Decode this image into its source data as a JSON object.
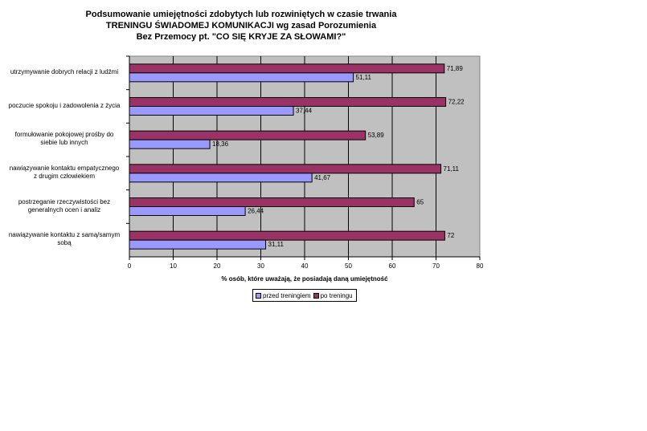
{
  "chart_data": {
    "type": "bar",
    "orientation": "horizontal",
    "title_lines": [
      "Podsumowanie umiejętności zdobytych lub rozwiniętych w czasie trwania",
      "TRENINGU ŚWIADOMEJ KOMUNIKACJI wg zasad Porozumienia",
      "Bez Przemocy pt. \"CO SIĘ KRYJE ZA SŁOWAMI?\""
    ],
    "categories": [
      [
        "utrzymywanie dobrych relacji z ludźmi"
      ],
      [
        "poczucie spokoju i zadowolenia z życia"
      ],
      [
        "formułowanie pokojowej prośby do",
        "siebie lub innych"
      ],
      [
        "nawiązywanie kontaktu empatycznego",
        "z drugim człowiekiem"
      ],
      [
        "postrzeganie rzeczywistości bez",
        "generalnych ocen i analiz"
      ],
      [
        "nawiązywanie kontaktu z samą/samym",
        "sobą"
      ]
    ],
    "series": [
      {
        "name": "po treningu",
        "color": "#993366",
        "values": [
          71.89,
          72.22,
          53.89,
          71.11,
          65,
          72
        ],
        "labels": [
          "71,89",
          "72,22",
          "53,89",
          "71,11",
          "65",
          "72"
        ]
      },
      {
        "name": "przed treningiem",
        "color": "#9999ff",
        "values": [
          51.11,
          37.44,
          18.36,
          41.67,
          26.44,
          31.11
        ],
        "labels": [
          "51,11",
          "37,44",
          "18,36",
          "41,67",
          "26,44",
          "31,11"
        ]
      }
    ],
    "xlabel": "% osób, które uważają, że posiadają daną umiejętność",
    "xlim": [
      0,
      80
    ],
    "xticks": [
      "0",
      "10",
      "20",
      "30",
      "40",
      "50",
      "60",
      "70",
      "80"
    ],
    "grid": true,
    "plot_background": "#c0c0c0",
    "legend_position": "bottom",
    "legend": [
      "przed treningiem",
      "po treningu"
    ]
  }
}
